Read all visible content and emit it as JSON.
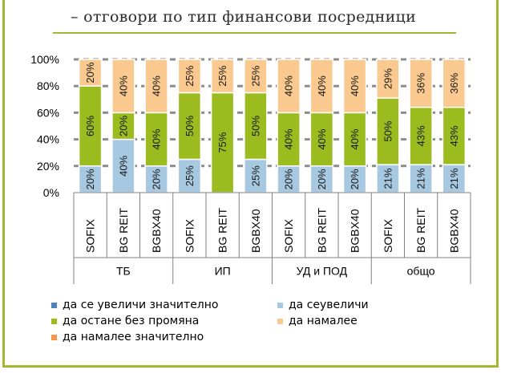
{
  "title": "– отговори по тип финансови посредници",
  "chart_data": {
    "type": "bar",
    "stacked": true,
    "percent_stacked": true,
    "ylim": [
      0,
      100
    ],
    "y_ticks": [
      "0%",
      "20%",
      "40%",
      "60%",
      "80%",
      "100%"
    ],
    "grid": true,
    "groups": [
      {
        "name": "ТБ",
        "categories": [
          "SOFIX",
          "BG REIT",
          "BGBX40"
        ]
      },
      {
        "name": "ИП",
        "categories": [
          "SOFIX",
          "BG REIT",
          "BGBX40"
        ]
      },
      {
        "name": "УД и ПОД",
        "categories": [
          "SOFIX",
          "BG REIT",
          "BGBX40"
        ]
      },
      {
        "name": "общо",
        "categories": [
          "SOFIX",
          "BG REIT",
          "BGBX40"
        ]
      }
    ],
    "categories": [
      "SOFIX",
      "BG REIT",
      "BGBX40",
      "SOFIX",
      "BG REIT",
      "BGBX40",
      "SOFIX",
      "BG REIT",
      "BGBX40",
      "SOFIX",
      "BG REIT",
      "BGBX40"
    ],
    "series": [
      {
        "name": "да се увеличи значително",
        "color": "#4f81bd",
        "values": [
          0,
          0,
          0,
          0,
          0,
          0,
          0,
          0,
          0,
          0,
          0,
          0
        ],
        "labels": [
          "",
          "",
          "",
          "",
          "",
          "",
          "",
          "",
          "",
          "",
          "",
          ""
        ]
      },
      {
        "name": "да сеувеличи",
        "color": "#a6c8e0",
        "values": [
          20,
          40,
          20,
          25,
          0,
          25,
          20,
          20,
          20,
          21,
          21,
          21
        ],
        "labels": [
          "20%",
          "40%",
          "20%",
          "25%",
          "",
          "25%",
          "20%",
          "20%",
          "20%",
          "21%",
          "21%",
          "21%"
        ]
      },
      {
        "name": "да остане без промяна",
        "color": "#9bbb1f",
        "values": [
          60,
          20,
          40,
          50,
          75,
          50,
          40,
          40,
          40,
          50,
          43,
          43
        ],
        "labels": [
          "60%",
          "20%",
          "40%",
          "50%",
          "75%",
          "50%",
          "40%",
          "40%",
          "40%",
          "50%",
          "43%",
          "43%"
        ]
      },
      {
        "name": "да намалее",
        "color": "#fac98f",
        "values": [
          20,
          40,
          40,
          25,
          25,
          25,
          40,
          40,
          40,
          29,
          36,
          36
        ],
        "labels": [
          "20%",
          "40%",
          "40%",
          "25%",
          "25%",
          "25%",
          "40%",
          "40%",
          "40%",
          "29%",
          "36%",
          "36%"
        ]
      },
      {
        "name": "да намалее значително",
        "color": "#f79646",
        "values": [
          0,
          0,
          0,
          0,
          0,
          0,
          0,
          0,
          0,
          0,
          0,
          0
        ],
        "labels": [
          "",
          "",
          "",
          "",
          "",
          "",
          "",
          "",
          "",
          "",
          "",
          ""
        ]
      }
    ],
    "legend_position": "bottom"
  }
}
